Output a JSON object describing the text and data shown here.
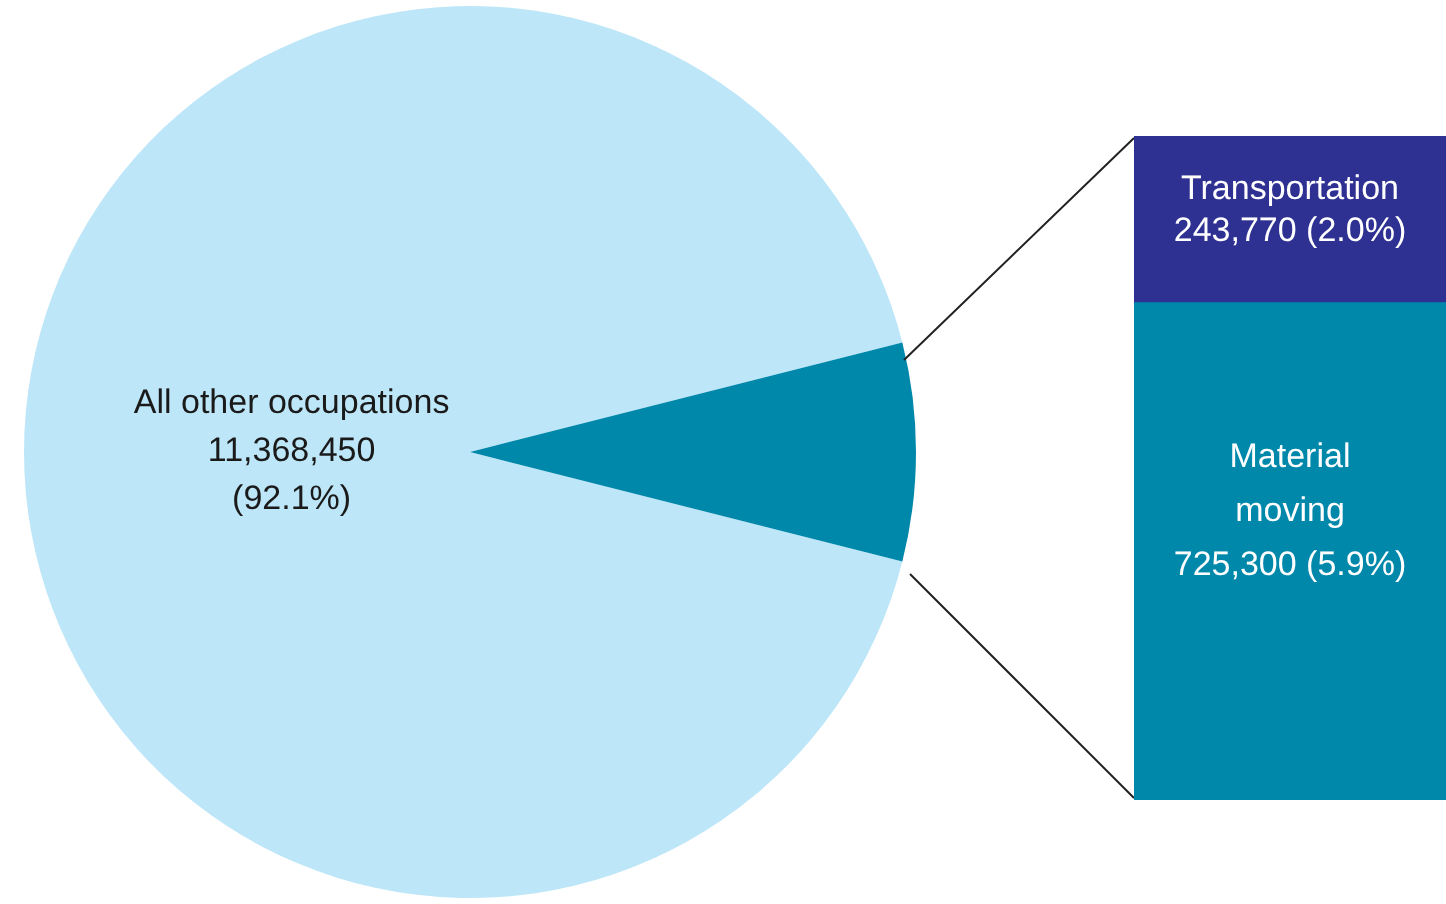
{
  "chart_data": [
    {
      "type": "pie",
      "categories": [
        "All other occupations",
        null
      ],
      "values": [
        92.1,
        7.9
      ],
      "colors": [
        "#bde6f8",
        "#0088ab"
      ],
      "value_labels": [
        "11,368,450 (92.1%)",
        null
      ]
    },
    {
      "type": "bar",
      "stacked": true,
      "categories": [
        null
      ],
      "series": [
        {
          "name": "Material moving",
          "color": "#0088ab",
          "values": [
            725300
          ],
          "value_labels": [
            "725,300 (5.9%)"
          ]
        },
        {
          "name": "Transportation",
          "color": "#2e3192",
          "values": [
            243770
          ],
          "value_labels": [
            "243,770 (2.0%)"
          ]
        }
      ]
    }
  ]
}
